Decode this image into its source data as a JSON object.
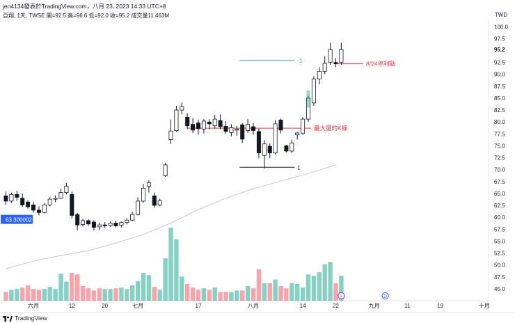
{
  "header": {
    "title": "jen4134發表於TradingView.com，八月 23, 2023 14:33 UTC+8",
    "info": "亞翔, 1天, TWSE  開=92.5  高=96.6  低=92.0  收=95.2  成交量11.463M",
    "currency": "TWD"
  },
  "footer": {
    "brand": "TradingView"
  },
  "chart_data": {
    "type": "candlestick",
    "y_axis": {
      "min": 42.5,
      "max": 101.5,
      "ticks": [
        "100.0",
        "97.5",
        "95.2",
        "92.5",
        "90.0",
        "87.5",
        "85.0",
        "82.5",
        "80.0",
        "77.5",
        "75.0",
        "72.5",
        "70.0",
        "67.5",
        "65.0",
        "62.5",
        "60.0",
        "57.5",
        "55.0",
        "52.5",
        "50.0",
        "47.5",
        "45.0"
      ],
      "current_price": "95.2"
    },
    "x_axis": {
      "labels": [
        {
          "i": 5,
          "text": "六月"
        },
        {
          "i": 12,
          "text": "12"
        },
        {
          "i": 18,
          "text": "20"
        },
        {
          "i": 24,
          "text": "七月"
        },
        {
          "i": 35,
          "text": "17"
        },
        {
          "i": 45,
          "text": "八月"
        },
        {
          "i": 54,
          "text": "14"
        },
        {
          "i": 60,
          "text": "22"
        },
        {
          "i": 67,
          "text": "九月"
        },
        {
          "i": 73,
          "text": "11"
        },
        {
          "i": 79,
          "text": "19"
        },
        {
          "i": 87,
          "text": "十月"
        }
      ]
    },
    "candles": [
      {
        "o": 64.5,
        "h": 65.4,
        "l": 62.6,
        "c": 63.4
      },
      {
        "o": 63.4,
        "h": 65.2,
        "l": 63.0,
        "c": 64.8
      },
      {
        "o": 64.8,
        "h": 65.6,
        "l": 63.5,
        "c": 64.2
      },
      {
        "o": 64.0,
        "h": 65.0,
        "l": 62.2,
        "c": 62.6
      },
      {
        "o": 63.2,
        "h": 63.6,
        "l": 61.8,
        "c": 62.2
      },
      {
        "o": 62.6,
        "h": 63.3,
        "l": 61.0,
        "c": 61.5
      },
      {
        "o": 61.5,
        "h": 62.3,
        "l": 60.4,
        "c": 61.0
      },
      {
        "o": 61.0,
        "h": 63.0,
        "l": 60.8,
        "c": 62.6
      },
      {
        "o": 62.6,
        "h": 64.2,
        "l": 62.3,
        "c": 63.8
      },
      {
        "o": 63.8,
        "h": 64.6,
        "l": 63.2,
        "c": 64.0
      },
      {
        "o": 64.0,
        "h": 66.0,
        "l": 63.8,
        "c": 65.2
      },
      {
        "o": 65.2,
        "h": 67.2,
        "l": 64.8,
        "c": 66.5
      },
      {
        "o": 64.8,
        "h": 65.4,
        "l": 59.8,
        "c": 60.4
      },
      {
        "o": 60.6,
        "h": 60.9,
        "l": 57.3,
        "c": 58.4
      },
      {
        "o": 58.5,
        "h": 59.7,
        "l": 58.1,
        "c": 59.3
      },
      {
        "o": 59.3,
        "h": 59.6,
        "l": 58.2,
        "c": 58.6
      },
      {
        "o": 59.0,
        "h": 59.4,
        "l": 57.2,
        "c": 57.9
      },
      {
        "o": 58.0,
        "h": 58.9,
        "l": 57.3,
        "c": 58.4
      },
      {
        "o": 58.4,
        "h": 59.0,
        "l": 57.8,
        "c": 58.2
      },
      {
        "o": 58.3,
        "h": 59.1,
        "l": 58.0,
        "c": 58.8
      },
      {
        "o": 58.8,
        "h": 59.3,
        "l": 57.9,
        "c": 58.2
      },
      {
        "o": 58.3,
        "h": 59.1,
        "l": 57.9,
        "c": 58.9
      },
      {
        "o": 58.9,
        "h": 59.8,
        "l": 58.5,
        "c": 59.4
      },
      {
        "o": 59.4,
        "h": 61.2,
        "l": 59.2,
        "c": 60.6
      },
      {
        "o": 60.6,
        "h": 64.2,
        "l": 60.4,
        "c": 63.4
      },
      {
        "o": 63.4,
        "h": 67.0,
        "l": 63.0,
        "c": 66.1
      },
      {
        "o": 66.5,
        "h": 67.8,
        "l": 65.2,
        "c": 67.3
      },
      {
        "o": 64.5,
        "h": 65.2,
        "l": 62.0,
        "c": 62.5
      },
      {
        "o": 62.6,
        "h": 63.9,
        "l": 62.3,
        "c": 63.5
      },
      {
        "o": 68.7,
        "h": 71.4,
        "l": 68.5,
        "c": 71.0
      },
      {
        "o": 76.3,
        "h": 80.5,
        "l": 75.4,
        "c": 78.1
      },
      {
        "o": 78.2,
        "h": 83.4,
        "l": 78.0,
        "c": 82.5
      },
      {
        "o": 82.5,
        "h": 84.1,
        "l": 81.6,
        "c": 83.2
      },
      {
        "o": 81.0,
        "h": 81.8,
        "l": 78.5,
        "c": 79.2
      },
      {
        "o": 79.5,
        "h": 80.8,
        "l": 77.7,
        "c": 78.3
      },
      {
        "o": 79.8,
        "h": 80.5,
        "l": 77.4,
        "c": 78.6
      },
      {
        "o": 78.5,
        "h": 80.6,
        "l": 77.6,
        "c": 80.2
      },
      {
        "o": 80.0,
        "h": 80.6,
        "l": 78.5,
        "c": 79.6
      },
      {
        "o": 79.2,
        "h": 81.5,
        "l": 78.6,
        "c": 80.6
      },
      {
        "o": 80.3,
        "h": 81.6,
        "l": 78.5,
        "c": 79.0
      },
      {
        "o": 79.1,
        "h": 80.2,
        "l": 77.5,
        "c": 78.0
      },
      {
        "o": 77.8,
        "h": 79.5,
        "l": 77.0,
        "c": 78.8
      },
      {
        "o": 78.3,
        "h": 79.2,
        "l": 77.1,
        "c": 78.5
      },
      {
        "o": 79.4,
        "h": 79.8,
        "l": 75.6,
        "c": 76.4
      },
      {
        "o": 78.2,
        "h": 80.6,
        "l": 77.7,
        "c": 79.5
      },
      {
        "o": 79.0,
        "h": 79.8,
        "l": 77.3,
        "c": 78.2
      },
      {
        "o": 78.0,
        "h": 78.6,
        "l": 72.4,
        "c": 73.5
      },
      {
        "o": 73.0,
        "h": 76.2,
        "l": 70.2,
        "c": 75.4
      },
      {
        "o": 74.9,
        "h": 75.5,
        "l": 72.4,
        "c": 73.5
      },
      {
        "o": 73.5,
        "h": 80.4,
        "l": 73.2,
        "c": 79.6
      },
      {
        "o": 80.4,
        "h": 80.7,
        "l": 77.6,
        "c": 78.3
      },
      {
        "o": 75.0,
        "h": 75.2,
        "l": 73.6,
        "c": 73.9
      },
      {
        "o": 73.9,
        "h": 76.3,
        "l": 73.5,
        "c": 75.6
      },
      {
        "o": 77.3,
        "h": 77.9,
        "l": 76.3,
        "c": 77.7
      },
      {
        "o": 77.6,
        "h": 81.0,
        "l": 77.3,
        "c": 80.6
      },
      {
        "o": 80.6,
        "h": 85.5,
        "l": 80.0,
        "c": 85.0
      },
      {
        "o": 84.0,
        "h": 89.6,
        "l": 83.4,
        "c": 89.0
      },
      {
        "o": 89.0,
        "h": 91.5,
        "l": 87.9,
        "c": 90.6
      },
      {
        "o": 90.6,
        "h": 93.8,
        "l": 90.0,
        "c": 92.3
      },
      {
        "o": 92.5,
        "h": 96.6,
        "l": 92.0,
        "c": 95.2
      },
      {
        "o": 92.5,
        "h": 93.4,
        "l": 91.5,
        "c": 92.2
      },
      {
        "o": 92.5,
        "h": 96.6,
        "l": 92.0,
        "c": 95.2
      }
    ],
    "moving_average": [
      {
        "i": 0,
        "v": 49.2
      },
      {
        "i": 5,
        "v": 50.8
      },
      {
        "i": 10,
        "v": 52.0
      },
      {
        "i": 15,
        "v": 53.0
      },
      {
        "i": 20,
        "v": 54.6
      },
      {
        "i": 25,
        "v": 56.4
      },
      {
        "i": 30,
        "v": 58.8
      },
      {
        "i": 35,
        "v": 61.6
      },
      {
        "i": 40,
        "v": 64.0
      },
      {
        "i": 45,
        "v": 66.0
      },
      {
        "i": 50,
        "v": 67.6
      },
      {
        "i": 55,
        "v": 69.2
      },
      {
        "i": 60,
        "v": 71.0
      }
    ],
    "volume_max_units": 100,
    "volumes": [
      {
        "v": 12,
        "up": false
      },
      {
        "v": 15,
        "up": true
      },
      {
        "v": 16,
        "up": true
      },
      {
        "v": 18,
        "up": false
      },
      {
        "v": 21,
        "up": false
      },
      {
        "v": 16,
        "up": false
      },
      {
        "v": 15,
        "up": false
      },
      {
        "v": 16,
        "up": true
      },
      {
        "v": 19,
        "up": true
      },
      {
        "v": 16,
        "up": true
      },
      {
        "v": 37,
        "up": true
      },
      {
        "v": 26,
        "up": true
      },
      {
        "v": 38,
        "up": false
      },
      {
        "v": 36,
        "up": false
      },
      {
        "v": 20,
        "up": false
      },
      {
        "v": 17,
        "up": false
      },
      {
        "v": 14,
        "up": false
      },
      {
        "v": 17,
        "up": false
      },
      {
        "v": 16,
        "up": true
      },
      {
        "v": 16,
        "up": true
      },
      {
        "v": 17,
        "up": false
      },
      {
        "v": 18,
        "up": true
      },
      {
        "v": 16,
        "up": true
      },
      {
        "v": 21,
        "up": true
      },
      {
        "v": 27,
        "up": true
      },
      {
        "v": 38,
        "up": true
      },
      {
        "v": 35,
        "up": true
      },
      {
        "v": 19,
        "up": false
      },
      {
        "v": 15,
        "up": true
      },
      {
        "v": 58,
        "up": true
      },
      {
        "v": 100,
        "up": true
      },
      {
        "v": 84,
        "up": true
      },
      {
        "v": 33,
        "up": true
      },
      {
        "v": 23,
        "up": false
      },
      {
        "v": 18,
        "up": false
      },
      {
        "v": 15,
        "up": false
      },
      {
        "v": 17,
        "up": true
      },
      {
        "v": 15,
        "up": false
      },
      {
        "v": 18,
        "up": true
      },
      {
        "v": 12,
        "up": false
      },
      {
        "v": 12,
        "up": false
      },
      {
        "v": 12,
        "up": true
      },
      {
        "v": 14,
        "up": true
      },
      {
        "v": 14,
        "up": false
      },
      {
        "v": 20,
        "up": true
      },
      {
        "v": 17,
        "up": false
      },
      {
        "v": 43,
        "up": false
      },
      {
        "v": 24,
        "up": true
      },
      {
        "v": 24,
        "up": false
      },
      {
        "v": 29,
        "up": true
      },
      {
        "v": 20,
        "up": false
      },
      {
        "v": 17,
        "up": false
      },
      {
        "v": 24,
        "up": true
      },
      {
        "v": 23,
        "up": true
      },
      {
        "v": 18,
        "up": true
      },
      {
        "v": 36,
        "up": true
      },
      {
        "v": 34,
        "up": true
      },
      {
        "v": 39,
        "up": true
      },
      {
        "v": 50,
        "up": true
      },
      {
        "v": 53,
        "up": true
      },
      {
        "v": 24,
        "up": false
      },
      {
        "v": 34,
        "up": true
      }
    ],
    "annotations": [
      {
        "type": "hline",
        "color": "#f23645",
        "y": 92.2,
        "x1": 60,
        "x2": 65,
        "label": "8/24停利點"
      },
      {
        "type": "hline",
        "color": "#f23645",
        "y": 78.7,
        "x1": 33,
        "x2": 55.5,
        "label": "最大量的K線"
      },
      {
        "type": "hline",
        "color": "#131722",
        "y": 70.5,
        "x1": 42.5,
        "x2": 52.5,
        "label": "1"
      },
      {
        "type": "hline",
        "color": "#22ab94",
        "y": 92.9,
        "x1": 42.5,
        "x2": 52.5,
        "label": "-1"
      }
    ],
    "price_tag": "63.300002",
    "markers": [
      {
        "i": 61,
        "label": "⚡"
      },
      {
        "i": 69,
        "label": "D"
      }
    ]
  }
}
